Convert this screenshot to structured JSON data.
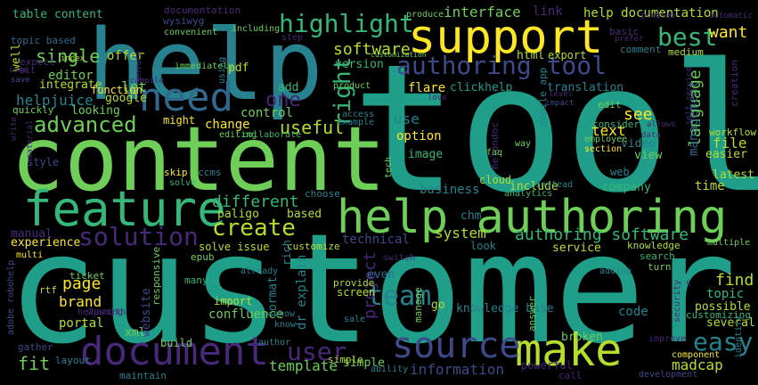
{
  "palette": {
    "background": "#000000",
    "yellow": "#fde725",
    "lime": "#b5de2b",
    "green": "#6ece58",
    "lightgreen": "#35b779",
    "teal": "#1f9e89",
    "cyan": "#26828e",
    "blue": "#31688e",
    "indigo": "#3e4989",
    "purple": "#482878",
    "darkpurple": "#440154"
  },
  "words": [
    {
      "text": "customer",
      "color": "#1f9e89"
    },
    {
      "text": "tool",
      "color": "#1f9e89"
    },
    {
      "text": "content",
      "color": "#6ece58"
    },
    {
      "text": "help",
      "color": "#26828e"
    },
    {
      "text": "help authoring",
      "color": "#6ece58"
    },
    {
      "text": "feature",
      "color": "#35b779"
    },
    {
      "text": "support",
      "color": "#fde725"
    },
    {
      "text": "document",
      "color": "#482878"
    },
    {
      "text": "make",
      "color": "#b5de2b"
    },
    {
      "text": "need",
      "color": "#31688e"
    },
    {
      "text": "source",
      "color": "#3e4989"
    },
    {
      "text": "authoring tool",
      "color": "#3e4989"
    },
    {
      "text": "solution",
      "color": "#482878"
    },
    {
      "text": "highlight",
      "color": "#35b779"
    },
    {
      "text": "advanced",
      "color": "#6ece58"
    },
    {
      "text": "best",
      "color": "#35b779"
    },
    {
      "text": "user",
      "color": "#482878"
    },
    {
      "text": "easy",
      "color": "#26828e"
    },
    {
      "text": "team",
      "color": "#26828e"
    },
    {
      "text": "authoring software",
      "color": "#35b779"
    },
    {
      "text": "create",
      "color": "#b5de2b"
    },
    {
      "text": "right",
      "color": "#35b779"
    },
    {
      "text": "software",
      "color": "#b5de2b"
    },
    {
      "text": "one",
      "color": "#482878"
    },
    {
      "text": "useful",
      "color": "#b5de2b"
    },
    {
      "text": "different",
      "color": "#35b779"
    },
    {
      "text": "language",
      "color": "#6ece58"
    },
    {
      "text": "want",
      "color": "#fde725"
    },
    {
      "text": "page",
      "color": "#fde725"
    },
    {
      "text": "single",
      "color": "#6ece58"
    },
    {
      "text": "management",
      "color": "#31688e"
    },
    {
      "text": "project",
      "color": "#482878"
    },
    {
      "text": "system",
      "color": "#b5de2b"
    },
    {
      "text": "fit",
      "color": "#6ece58"
    },
    {
      "text": "find",
      "color": "#b5de2b"
    },
    {
      "text": "information",
      "color": "#3e4989"
    },
    {
      "text": "madcap",
      "color": "#b5de2b"
    },
    {
      "text": "text",
      "color": "#fde725"
    },
    {
      "text": "help documentation",
      "color": "#b5de2b"
    },
    {
      "text": "interface",
      "color": "#6ece58"
    },
    {
      "text": "editor",
      "color": "#6ece58"
    },
    {
      "text": "helpjuice",
      "color": "#26828e"
    },
    {
      "text": "version",
      "color": "#35b779"
    },
    {
      "text": "change",
      "color": "#fde725"
    },
    {
      "text": "control",
      "color": "#6ece58"
    },
    {
      "text": "see",
      "color": "#fde725"
    },
    {
      "text": "use",
      "color": "#26828e"
    },
    {
      "text": "file",
      "color": "#b5de2b"
    },
    {
      "text": "template",
      "color": "#6ece58"
    },
    {
      "text": "brand",
      "color": "#fde725"
    },
    {
      "text": "manual",
      "color": "#482878"
    },
    {
      "text": "technical",
      "color": "#3e4989"
    },
    {
      "text": "company",
      "color": "#35b779"
    },
    {
      "text": "topic",
      "color": "#35b779"
    },
    {
      "text": "code",
      "color": "#26828e"
    },
    {
      "text": "business",
      "color": "#26828e"
    },
    {
      "text": "time",
      "color": "#b5de2b"
    },
    {
      "text": "flare",
      "color": "#fde725"
    },
    {
      "text": "option",
      "color": "#fde725"
    },
    {
      "text": "image",
      "color": "#35b779"
    },
    {
      "text": "translation",
      "color": "#26828e"
    },
    {
      "text": "paligo",
      "color": "#b5de2b"
    },
    {
      "text": "based",
      "color": "#b5de2b"
    },
    {
      "text": "website",
      "color": "#3e4989"
    },
    {
      "text": "confluence",
      "color": "#6ece58"
    },
    {
      "text": "portal",
      "color": "#b5de2b"
    },
    {
      "text": "simple",
      "color": "#6ece58"
    },
    {
      "text": "table content",
      "color": "#35b779"
    },
    {
      "text": "topic based",
      "color": "#31688e"
    },
    {
      "text": "documentation",
      "color": "#482878"
    },
    {
      "text": "wysiwyg",
      "color": "#3e4989"
    },
    {
      "text": "offer",
      "color": "#b5de2b"
    },
    {
      "text": "convenient",
      "color": "#6ece58"
    },
    {
      "text": "let",
      "color": "#6ece58"
    },
    {
      "text": "pdf",
      "color": "#b5de2b"
    },
    {
      "text": "html",
      "color": "#b5de2b"
    },
    {
      "text": "export",
      "color": "#b5de2b"
    },
    {
      "text": "link",
      "color": "#482878"
    },
    {
      "text": "basic",
      "color": "#482878"
    },
    {
      "text": "comment",
      "color": "#26828e"
    },
    {
      "text": "medium",
      "color": "#b5de2b"
    },
    {
      "text": "integrate",
      "color": "#b5de2b"
    },
    {
      "text": "looking",
      "color": "#6ece58"
    },
    {
      "text": "google",
      "color": "#b5de2b"
    },
    {
      "text": "add",
      "color": "#35b779"
    },
    {
      "text": "clickhelp",
      "color": "#1f9e89"
    },
    {
      "text": "well",
      "color": "#b5de2b"
    },
    {
      "text": "quickly",
      "color": "#6ece58"
    },
    {
      "text": "function",
      "color": "#fde725"
    },
    {
      "text": "might",
      "color": "#fde725"
    },
    {
      "text": "skip",
      "color": "#fde725"
    },
    {
      "text": "ccms",
      "color": "#26828e"
    },
    {
      "text": "style",
      "color": "#3e4989"
    },
    {
      "text": "experience",
      "color": "#fde725"
    },
    {
      "text": "chm",
      "color": "#26828e"
    },
    {
      "text": "look",
      "color": "#26828e"
    },
    {
      "text": "knowledge base",
      "color": "#26828e"
    },
    {
      "text": "include",
      "color": "#b5de2b"
    },
    {
      "text": "latest",
      "color": "#b5de2b"
    },
    {
      "text": "easier",
      "color": "#b5de2b"
    },
    {
      "text": "video",
      "color": "#26828e"
    },
    {
      "text": "view",
      "color": "#6ece58"
    },
    {
      "text": "web",
      "color": "#26828e"
    },
    {
      "text": "workflow",
      "color": "#b5de2b"
    },
    {
      "text": "edit",
      "color": "#6ece58"
    },
    {
      "text": "consider",
      "color": "#35b779"
    },
    {
      "text": "service",
      "color": "#b5de2b"
    },
    {
      "text": "knowledge",
      "color": "#b5de2b"
    },
    {
      "text": "search",
      "color": "#35b779"
    },
    {
      "text": "turn",
      "color": "#6ece58"
    },
    {
      "text": "several",
      "color": "#b5de2b"
    },
    {
      "text": "possible",
      "color": "#b5de2b"
    },
    {
      "text": "customizing",
      "color": "#35b779"
    },
    {
      "text": "broken",
      "color": "#6ece58"
    },
    {
      "text": "screen",
      "color": "#b5de2b"
    },
    {
      "text": "go",
      "color": "#b5de2b"
    },
    {
      "text": "simple",
      "color": "#b5de2b"
    },
    {
      "text": "solve issue",
      "color": "#b5de2b"
    },
    {
      "text": "customize",
      "color": "#b5de2b"
    },
    {
      "text": "choose",
      "color": "#26828e"
    },
    {
      "text": "xml",
      "color": "#6ece58"
    },
    {
      "text": "build",
      "color": "#6ece58"
    },
    {
      "text": "import",
      "color": "#b5de2b"
    },
    {
      "text": "many",
      "color": "#35b779"
    },
    {
      "text": "epub",
      "color": "#6ece58"
    },
    {
      "text": "rtf",
      "color": "#b5de2b"
    },
    {
      "text": "format",
      "color": "#26828e"
    },
    {
      "text": "dr explain",
      "color": "#26828e"
    },
    {
      "text": "rich",
      "color": "#26828e"
    },
    {
      "text": "even",
      "color": "#31688e"
    },
    {
      "text": "provide",
      "color": "#b5de2b"
    },
    {
      "text": "manage",
      "color": "#6ece58"
    },
    {
      "text": "answer",
      "color": "#6ece58"
    },
    {
      "text": "multi",
      "color": "#fde725"
    },
    {
      "text": "ticket",
      "color": "#6ece58"
    },
    {
      "text": "responsive",
      "color": "#6ece58"
    },
    {
      "text": "gather",
      "color": "#3e4989"
    },
    {
      "text": "layout",
      "color": "#26828e"
    },
    {
      "text": "maintain",
      "color": "#26828e"
    },
    {
      "text": "powerful",
      "color": "#482878"
    },
    {
      "text": "call",
      "color": "#482878"
    },
    {
      "text": "ability",
      "color": "#26828e"
    },
    {
      "text": "author",
      "color": "#26828e"
    },
    {
      "text": "know",
      "color": "#26828e"
    },
    {
      "text": "show",
      "color": "#26828e"
    },
    {
      "text": "sale",
      "color": "#26828e"
    },
    {
      "text": "already",
      "color": "#26828e"
    },
    {
      "text": "adding",
      "color": "#26828e"
    },
    {
      "text": "component",
      "color": "#fde725"
    },
    {
      "text": "development",
      "color": "#3e4989"
    },
    {
      "text": "identify",
      "color": "#26828e"
    },
    {
      "text": "improve",
      "color": "#482878"
    },
    {
      "text": "security",
      "color": "#482878"
    },
    {
      "text": "multiple",
      "color": "#6ece58"
    },
    {
      "text": "switch",
      "color": "#482878"
    },
    {
      "text": "sharing",
      "color": "#482878"
    },
    {
      "text": "helpsmith",
      "color": "#482878"
    },
    {
      "text": "adobe robohelp",
      "color": "#3e4989"
    },
    {
      "text": "expect",
      "color": "#482878"
    },
    {
      "text": "bit",
      "color": "#482878"
    },
    {
      "text": "come",
      "color": "#482878"
    },
    {
      "text": "save",
      "color": "#3e4989"
    },
    {
      "text": "index",
      "color": "#b5de2b"
    },
    {
      "text": "compile",
      "color": "#482878"
    },
    {
      "text": "ensure",
      "color": "#482878"
    },
    {
      "text": "write",
      "color": "#482878"
    },
    {
      "text": "material",
      "color": "#482878"
    },
    {
      "text": "immediately",
      "color": "#6ece58"
    },
    {
      "text": "editing",
      "color": "#6ece58"
    },
    {
      "text": "collaborate",
      "color": "#35b779"
    },
    {
      "text": "solve",
      "color": "#35b779"
    },
    {
      "text": "tech",
      "color": "#6ece58"
    },
    {
      "text": "helpndoc",
      "color": "#482878"
    },
    {
      "text": "instead",
      "color": "#26828e"
    },
    {
      "text": "analytics",
      "color": "#35b779"
    },
    {
      "text": "faq",
      "color": "#6ece58"
    },
    {
      "text": "mobile app",
      "color": "#26828e"
    },
    {
      "text": "way",
      "color": "#6ece58"
    },
    {
      "text": "level",
      "color": "#482878"
    },
    {
      "text": "impact",
      "color": "#3e4989"
    },
    {
      "text": "employee",
      "color": "#6ece58"
    },
    {
      "text": "section",
      "color": "#fde725"
    },
    {
      "text": "data",
      "color": "#482878"
    },
    {
      "text": "allows",
      "color": "#482878"
    },
    {
      "text": "self service",
      "color": "#482878"
    },
    {
      "text": "creation",
      "color": "#482878"
    },
    {
      "text": "automatic",
      "color": "#482878"
    },
    {
      "text": "prefer",
      "color": "#482878"
    },
    {
      "text": "problem",
      "color": "#482878"
    },
    {
      "text": "customization",
      "color": "#6ece58"
    },
    {
      "text": "produce",
      "color": "#6ece58"
    },
    {
      "text": "including",
      "color": "#6ece58"
    },
    {
      "text": "step",
      "color": "#482878"
    },
    {
      "text": "using",
      "color": "#26828e"
    },
    {
      "text": "product",
      "color": "#6ece58"
    },
    {
      "text": "love",
      "color": "#482878"
    },
    {
      "text": "access",
      "color": "#26828e"
    },
    {
      "text": "example",
      "color": "#26828e"
    },
    {
      "text": "cloud",
      "color": "#b5de2b"
    },
    {
      "text": "c",
      "color": "#482878"
    }
  ]
}
